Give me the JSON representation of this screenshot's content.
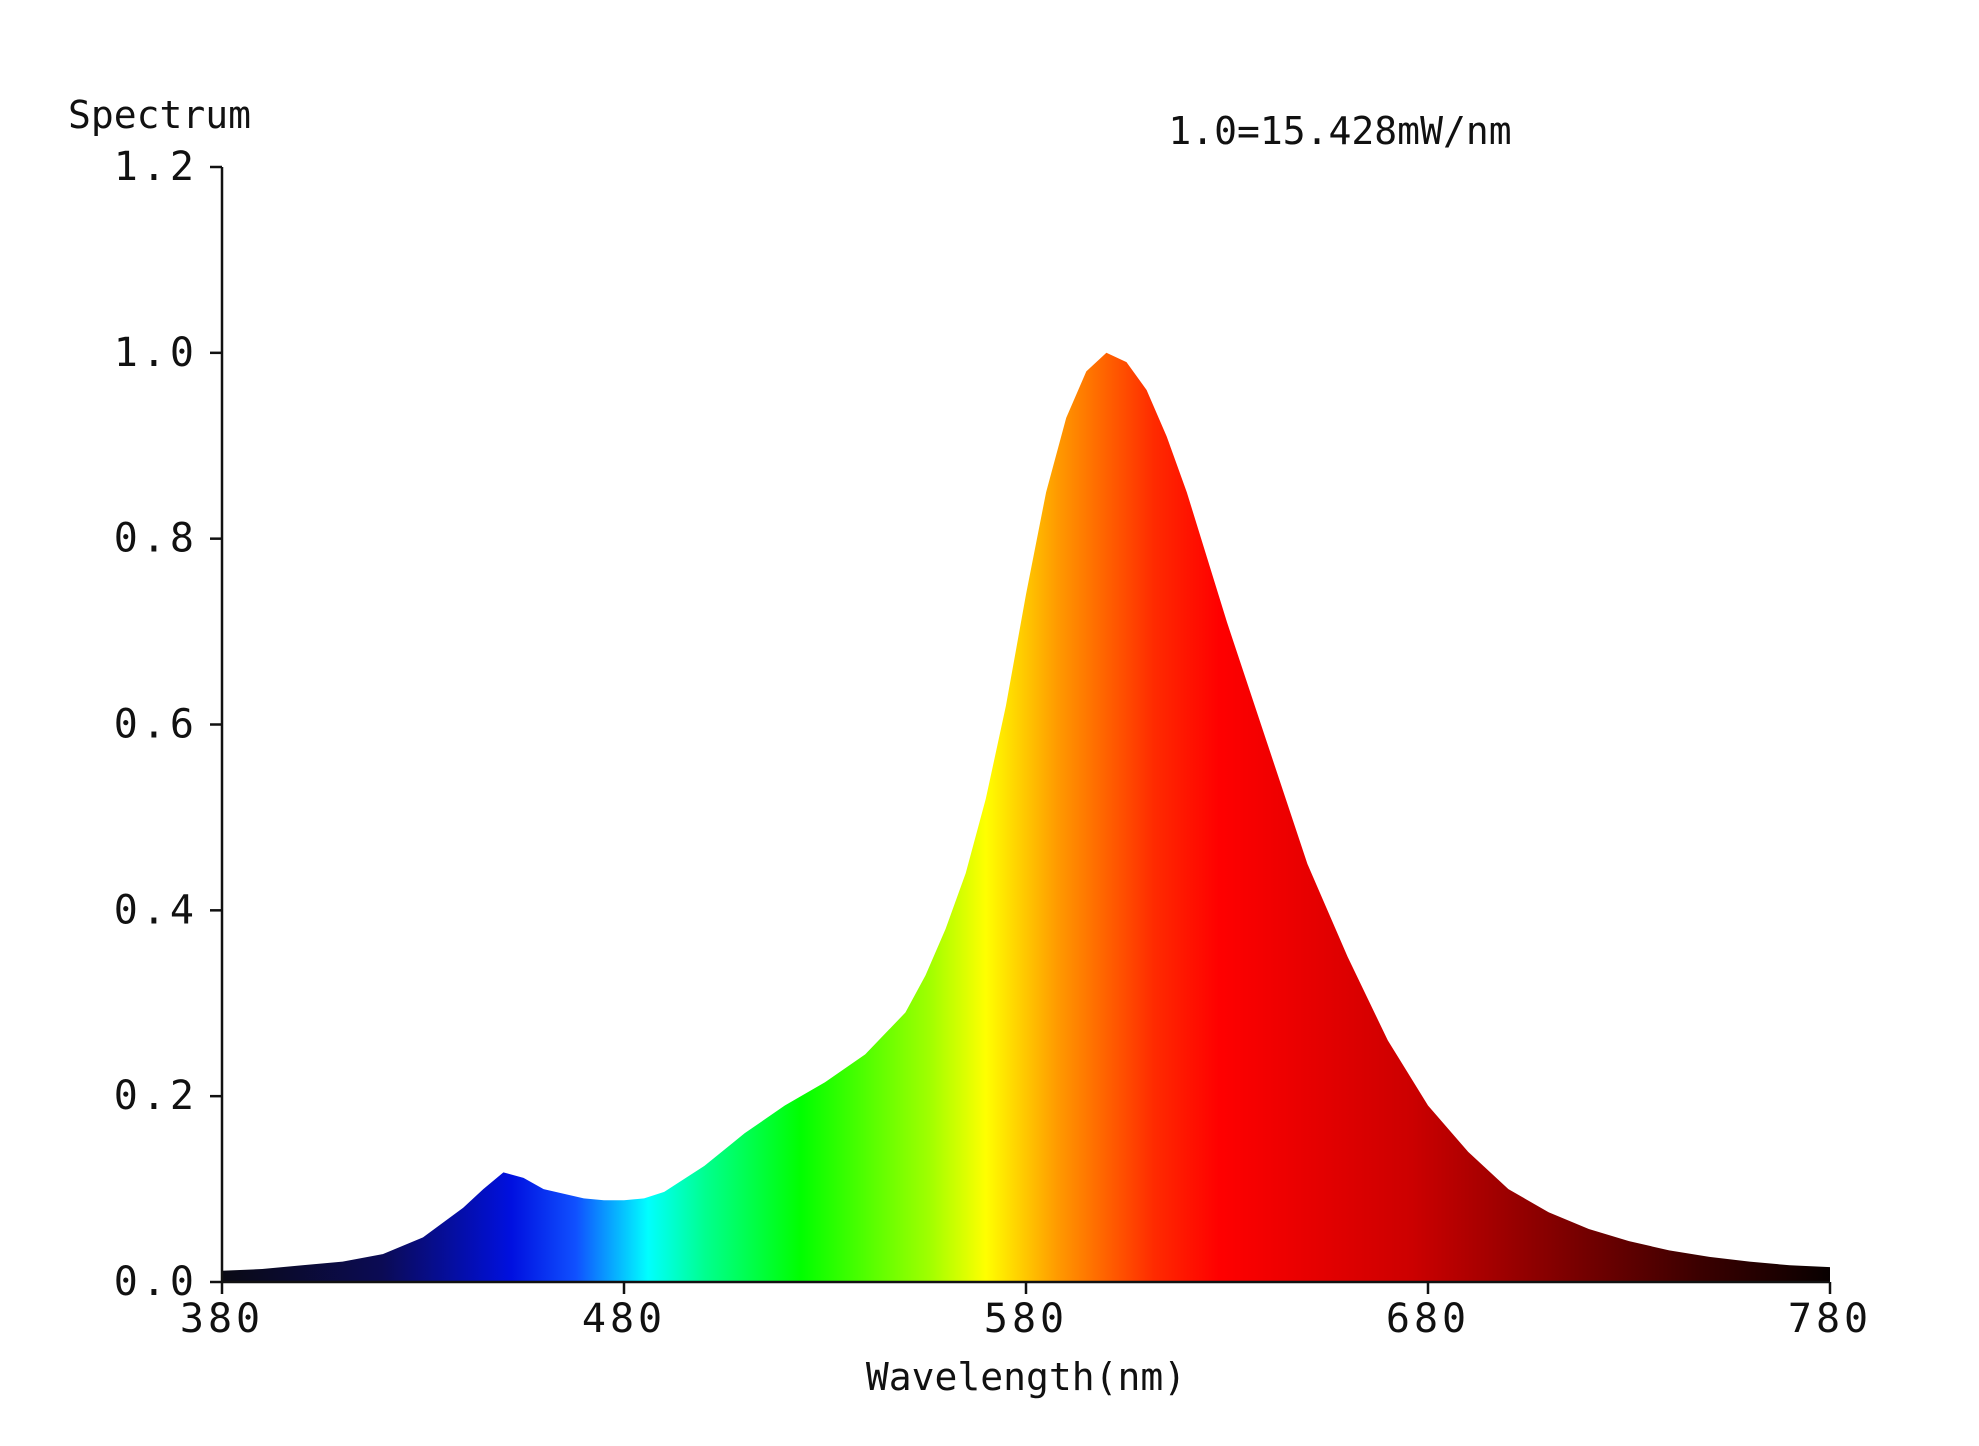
{
  "chart_data": {
    "type": "area",
    "title": "",
    "ylabel": "Spectrum",
    "xlabel": "Wavelength(nm)",
    "annotation": "1.0=15.428mW/nm",
    "xlim": [
      380,
      780
    ],
    "ylim": [
      0,
      1.2
    ],
    "x_ticks": [
      "380",
      "480",
      "580",
      "680",
      "780"
    ],
    "y_ticks": [
      "0.0",
      "0.2",
      "0.4",
      "0.6",
      "0.8",
      "1.0",
      "1.2"
    ],
    "grid": false,
    "fill": "visible-spectrum gradient by wavelength",
    "x": [
      380,
      390,
      400,
      410,
      420,
      430,
      440,
      445,
      450,
      455,
      460,
      465,
      470,
      475,
      480,
      485,
      490,
      500,
      510,
      520,
      530,
      540,
      550,
      555,
      560,
      565,
      570,
      575,
      580,
      585,
      590,
      595,
      600,
      605,
      610,
      615,
      620,
      625,
      630,
      640,
      650,
      660,
      670,
      680,
      690,
      700,
      710,
      720,
      730,
      740,
      750,
      760,
      770,
      780
    ],
    "y": [
      0.012,
      0.014,
      0.018,
      0.022,
      0.03,
      0.048,
      0.08,
      0.1,
      0.118,
      0.112,
      0.1,
      0.095,
      0.09,
      0.088,
      0.088,
      0.09,
      0.097,
      0.125,
      0.16,
      0.19,
      0.215,
      0.245,
      0.29,
      0.33,
      0.38,
      0.44,
      0.52,
      0.62,
      0.74,
      0.85,
      0.93,
      0.98,
      1.0,
      0.99,
      0.96,
      0.91,
      0.85,
      0.78,
      0.71,
      0.58,
      0.45,
      0.35,
      0.26,
      0.19,
      0.14,
      0.1,
      0.075,
      0.057,
      0.044,
      0.034,
      0.027,
      0.022,
      0.018,
      0.016
    ],
    "colors": {
      "axis": "#111111",
      "background": "#ffffff"
    }
  }
}
